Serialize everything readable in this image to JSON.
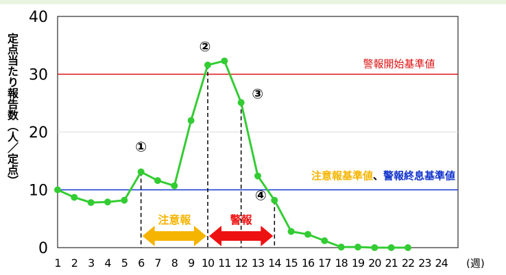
{
  "chart_data": {
    "type": "line",
    "ylabel": "定点当たり報告数（人／定点）",
    "x_unit": "(週)",
    "ylim": [
      0,
      40
    ],
    "y_ticks": [
      0,
      10,
      20,
      30,
      40
    ],
    "x": [
      1,
      2,
      3,
      4,
      5,
      6,
      7,
      8,
      9,
      10,
      11,
      12,
      13,
      14,
      15,
      16,
      17,
      18,
      19,
      20,
      21,
      22,
      23,
      24
    ],
    "series": [
      {
        "values": [
          10.0,
          8.7,
          7.8,
          7.9,
          8.2,
          13.1,
          11.6,
          10.7,
          22.0,
          31.6,
          32.3,
          25.1,
          12.4,
          8.2,
          2.8,
          2.3,
          1.2,
          0.1,
          0.1,
          0.0,
          0.0,
          0.0,
          null,
          null
        ],
        "color": "#33cc33"
      }
    ],
    "reference_lines": [
      {
        "label": "警報開始基準値",
        "value": 30,
        "color": "#dd1111"
      },
      {
        "value": 10,
        "color": "#1133cc"
      }
    ],
    "threshold_label_parts": [
      {
        "text": "注意報基準値",
        "color": "#f5b400"
      },
      {
        "text": "、",
        "color": "#000000"
      },
      {
        "text": "警報終息基準値",
        "color": "#1133cc"
      }
    ],
    "markers": [
      {
        "label": "①",
        "week": 6
      },
      {
        "label": "②",
        "week": 10
      },
      {
        "label": "③",
        "week": 12
      },
      {
        "label": "④",
        "week": 14
      }
    ],
    "periods": [
      {
        "label": "注意報",
        "from": 6,
        "to": 10,
        "color": "#f5b400"
      },
      {
        "label": "警報",
        "from": 10,
        "to": 14,
        "color": "#ee1111"
      }
    ],
    "grid": true,
    "grid_color": "#d9d9d9"
  }
}
